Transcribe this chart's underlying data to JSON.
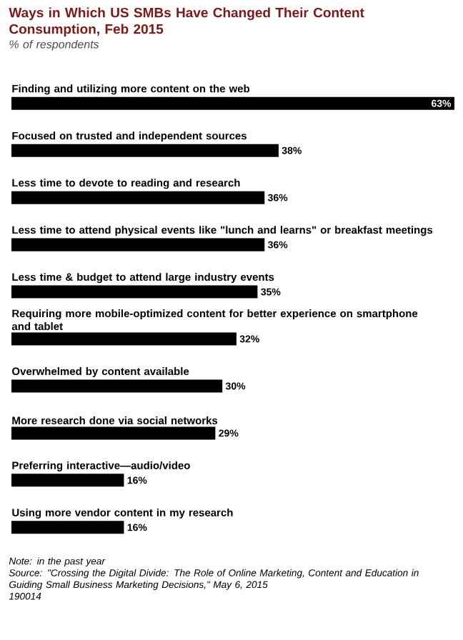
{
  "chart_data": {
    "type": "bar",
    "orientation": "horizontal",
    "title": "Ways in Which US SMBs Have Changed Their Content Consumption, Feb 2015",
    "subtitle": "% of respondents",
    "categories": [
      "Finding and utilizing more content on the web",
      "Focused on trusted and independent sources",
      "Less time to devote to reading and research",
      "Less time to attend physical events like \"lunch and learns\" or breakfast meetings",
      "Less time & budget to attend large industry events",
      "Requiring more mobile-optimized content for better experience on smartphone and tablet",
      "Overwhelmed by content available",
      "More research done via social networks",
      "Preferring interactive—audio/video",
      "Using more vendor content in my research"
    ],
    "values": [
      63,
      38,
      36,
      36,
      35,
      32,
      30,
      29,
      16,
      16
    ],
    "value_labels": [
      "63%",
      "38%",
      "36%",
      "36%",
      "35%",
      "32%",
      "30%",
      "29%",
      "16%",
      "16%"
    ],
    "color": "#000000",
    "annotations": [
      "Note: in the past year",
      "Source: \"Crossing the Digital Divide: The Role of Online Marketing, Content and Education in Guiding Small Business Marketing Decisions,\" May 6, 2015",
      "190014"
    ]
  }
}
